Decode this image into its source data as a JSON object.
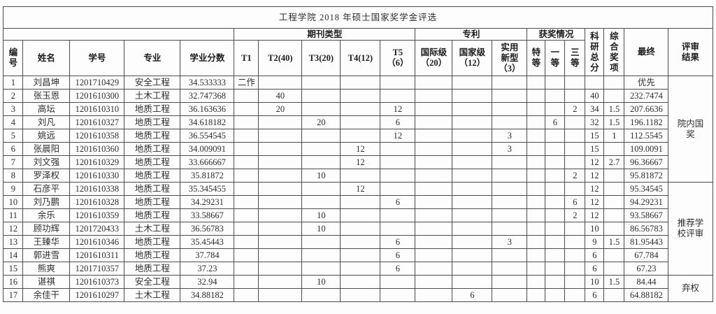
{
  "title": "工程学院 2018 年硕士国家奖学金评选",
  "header": {
    "groups": {
      "journal": "期刊类型",
      "patent": "专利",
      "awards": "获奖情况"
    },
    "columns": {
      "id": "编\n号",
      "name": "姓名",
      "student_id": "学号",
      "major": "专业",
      "academic_score": "学业分数",
      "t1": "T1",
      "t2": "T2(40)",
      "t3": "T3(20)",
      "t4": "T4(12)",
      "t5": "T5\n（6）",
      "patent_intl": "国际级\n（20）",
      "patent_natl": "国家级\n（12）",
      "patent_utility": "实用\n新型\n（3）",
      "award_special": "特\n等",
      "award_first": "一\n等",
      "award_third": "三\n等",
      "research_total": "科\n研\n总\n分",
      "comprehensive_award": "综\n合\n奖\n项",
      "final": "最终",
      "review_result": "评审\n结果"
    }
  },
  "rows": [
    [
      "1",
      "刘昌坤",
      "1201710429",
      "安全工程",
      "34.533333",
      "二作",
      "",
      "",
      "",
      "",
      "",
      "",
      "",
      "",
      "",
      "",
      "",
      "",
      "优先"
    ],
    [
      "2",
      "张玉恩",
      "1201610300",
      "土木工程",
      "32.747368",
      "",
      "40",
      "",
      "",
      "",
      "",
      "",
      "",
      "",
      "",
      "",
      "40",
      "",
      "232.7474"
    ],
    [
      "3",
      "高坛",
      "1201610310",
      "地质工程",
      "36.163636",
      "",
      "20",
      "",
      "",
      "12",
      "",
      "",
      "",
      "",
      "",
      "2",
      "34",
      "1.5",
      "207.6636"
    ],
    [
      "4",
      "刘凡",
      "1201610327",
      "地质工程",
      "34.618182",
      "",
      "",
      "20",
      "",
      "6",
      "",
      "",
      "",
      "",
      "6",
      "",
      "32",
      "1.5",
      "196.1182"
    ],
    [
      "5",
      "姚远",
      "1201610358",
      "地质工程",
      "36.554545",
      "",
      "",
      "",
      "",
      "12",
      "",
      "",
      "3",
      "",
      "",
      "",
      "15",
      "1",
      "112.5545"
    ],
    [
      "6",
      "张晨阳",
      "1201610360",
      "地质工程",
      "34.009091",
      "",
      "",
      "",
      "12",
      "",
      "",
      "",
      "3",
      "",
      "",
      "",
      "15",
      "",
      "109.0091"
    ],
    [
      "7",
      "刘文强",
      "1201610329",
      "地质工程",
      "33.666667",
      "",
      "",
      "",
      "12",
      "",
      "",
      "",
      "",
      "",
      "",
      "",
      "12",
      "2.7",
      "96.36667"
    ],
    [
      "8",
      "罗泽权",
      "1201610330",
      "地质工程",
      "35.81872",
      "",
      "",
      "10",
      "",
      "",
      "",
      "",
      "",
      "",
      "",
      "2",
      "12",
      "",
      "95.81872"
    ],
    [
      "9",
      "石彦平",
      "1201610338",
      "地质工程",
      "35.345455",
      "",
      "",
      "",
      "12",
      "",
      "",
      "",
      "",
      "",
      "",
      "",
      "12",
      "",
      "95.34545"
    ],
    [
      "10",
      "刘乃鹏",
      "1201610328",
      "地质工程",
      "34.29231",
      "",
      "",
      "",
      "",
      "6",
      "",
      "",
      "",
      "",
      "",
      "6",
      "12",
      "",
      "94.29231"
    ],
    [
      "11",
      "余乐",
      "1201610359",
      "地质工程",
      "33.58667",
      "",
      "",
      "10",
      "",
      "",
      "",
      "",
      "",
      "",
      "",
      "2",
      "12",
      "",
      "93.58667"
    ],
    [
      "12",
      "顾功辉",
      "1201720433",
      "土木工程",
      "36.56783",
      "",
      "",
      "10",
      "",
      "",
      "",
      "",
      "",
      "",
      "",
      "",
      "10",
      "",
      "86.56783"
    ],
    [
      "13",
      "王臻华",
      "1201610346",
      "地质工程",
      "35.45443",
      "",
      "",
      "",
      "",
      "6",
      "",
      "",
      "3",
      "",
      "",
      "",
      "9",
      "1.5",
      "81.95443"
    ],
    [
      "14",
      "郭进雪",
      "1201610311",
      "地质工程",
      "37.784",
      "",
      "",
      "",
      "",
      "6",
      "",
      "",
      "",
      "",
      "",
      "",
      "6",
      "",
      "67.784"
    ],
    [
      "15",
      "熊爽",
      "1201710357",
      "地质工程",
      "37.23",
      "",
      "",
      "",
      "",
      "6",
      "",
      "",
      "",
      "",
      "",
      "",
      "6",
      "",
      "67.23"
    ],
    [
      "16",
      "谌祺",
      "1201610373",
      "安全工程",
      "32.94",
      "",
      "",
      "10",
      "",
      "",
      "",
      "",
      "",
      "",
      "",
      "",
      "10",
      "1.5",
      "84.44"
    ],
    [
      "17",
      "余佳干",
      "1201610297",
      "土木工程",
      "34.88182",
      "",
      "",
      "",
      "",
      "",
      "",
      "6",
      "",
      "",
      "",
      "",
      "6",
      "",
      "64.88182"
    ]
  ],
  "review_spans": [
    {
      "start": 0,
      "rowspan": 8,
      "label": "院内国\n奖"
    },
    {
      "start": 8,
      "rowspan": 7,
      "label": "推荐学\n校评审"
    },
    {
      "start": 15,
      "rowspan": 2,
      "label": "弃权"
    }
  ]
}
